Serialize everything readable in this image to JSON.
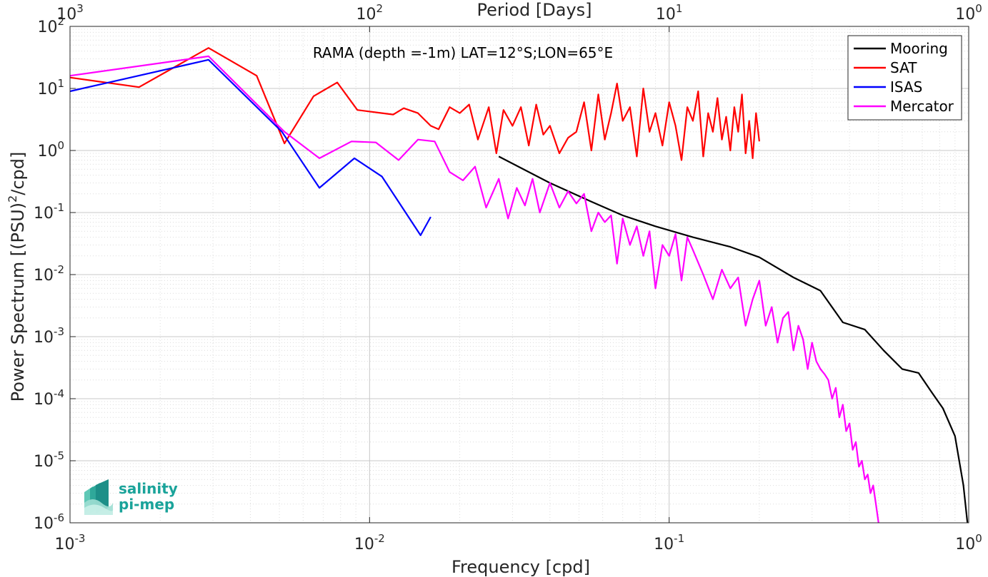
{
  "chart_data": {
    "type": "line",
    "title": "RAMA (depth =-1m) LAT=12°S;LON=65°E",
    "xlabel": "Frequency [cpd]",
    "ylabel_parts": [
      "Power Spectrum [(PSU)",
      "2",
      "/cpd]"
    ],
    "top_xlabel": "Period [Days]",
    "x_scale": "log",
    "y_scale": "log",
    "xlim": [
      0.001,
      1
    ],
    "ylim": [
      1e-06,
      100
    ],
    "top_xlim_period_days": [
      1000,
      1
    ],
    "grid": true,
    "legend_position": "top-right",
    "x_tick_labels": [
      {
        "base": "10",
        "exp": "-3"
      },
      {
        "base": "10",
        "exp": "-2"
      },
      {
        "base": "10",
        "exp": "-1"
      },
      {
        "base": "10",
        "exp": "0"
      }
    ],
    "top_x_tick_labels": [
      {
        "base": "10",
        "exp": "3"
      },
      {
        "base": "10",
        "exp": "2"
      },
      {
        "base": "10",
        "exp": "1"
      },
      {
        "base": "10",
        "exp": "0"
      }
    ],
    "y_tick_labels": [
      {
        "base": "10",
        "exp": "2"
      },
      {
        "base": "10",
        "exp": "1"
      },
      {
        "base": "10",
        "exp": "0"
      },
      {
        "base": "10",
        "exp": "-1"
      },
      {
        "base": "10",
        "exp": "-2"
      },
      {
        "base": "10",
        "exp": "-3"
      },
      {
        "base": "10",
        "exp": "-4"
      },
      {
        "base": "10",
        "exp": "-5"
      },
      {
        "base": "10",
        "exp": "-6"
      }
    ],
    "series": [
      {
        "name": "Mooring",
        "color": "#000000",
        "x": [
          0.027,
          0.04,
          0.055,
          0.07,
          0.09,
          0.12,
          0.16,
          0.2,
          0.26,
          0.32,
          0.38,
          0.45,
          0.52,
          0.6,
          0.68,
          0.75,
          0.82,
          0.9,
          0.96,
          0.99
        ],
        "y": [
          0.8,
          0.3,
          0.15,
          0.09,
          0.06,
          0.04,
          0.028,
          0.019,
          0.009,
          0.0055,
          0.0017,
          0.0013,
          0.0006,
          0.0003,
          0.00026,
          0.00013,
          7e-05,
          2.5e-05,
          4e-06,
          1e-06
        ]
      },
      {
        "name": "SAT",
        "color": "#ff0000",
        "x": [
          0.001,
          0.0017,
          0.0029,
          0.0042,
          0.0052,
          0.0065,
          0.0078,
          0.0091,
          0.011,
          0.012,
          0.013,
          0.0145,
          0.016,
          0.017,
          0.0185,
          0.02,
          0.0215,
          0.023,
          0.025,
          0.0265,
          0.028,
          0.03,
          0.032,
          0.034,
          0.036,
          0.038,
          0.04,
          0.043,
          0.046,
          0.049,
          0.052,
          0.055,
          0.058,
          0.061,
          0.064,
          0.067,
          0.07,
          0.074,
          0.078,
          0.082,
          0.086,
          0.09,
          0.095,
          0.1,
          0.105,
          0.11,
          0.115,
          0.12,
          0.125,
          0.13,
          0.135,
          0.14,
          0.145,
          0.15,
          0.155,
          0.16,
          0.165,
          0.17,
          0.175,
          0.18,
          0.185,
          0.19,
          0.195,
          0.2
        ],
        "y": [
          15,
          10.5,
          45,
          16,
          1.3,
          7.5,
          12.5,
          4.5,
          4,
          3.8,
          4.8,
          4,
          2.5,
          2.2,
          5,
          4,
          5.5,
          1.5,
          5,
          0.9,
          4.5,
          2.5,
          5,
          1.2,
          5.5,
          1.8,
          2.5,
          0.9,
          1.6,
          2,
          6,
          1,
          8,
          1.5,
          4,
          12,
          3,
          5,
          0.8,
          10,
          2,
          4,
          1.2,
          6,
          2.5,
          0.7,
          5,
          3,
          9,
          0.8,
          4,
          2,
          7,
          1.5,
          3.5,
          1,
          5,
          2,
          8,
          0.9,
          3,
          0.75,
          4,
          1.4
        ]
      },
      {
        "name": "ISAS",
        "color": "#0000ff",
        "x": [
          0.001,
          0.0029,
          0.0051,
          0.0068,
          0.0089,
          0.011,
          0.0148,
          0.016
        ],
        "y": [
          9,
          29,
          2,
          0.25,
          0.75,
          0.38,
          0.043,
          0.085
        ]
      },
      {
        "name": "Mercator",
        "color": "#ff00ff",
        "x": [
          0.001,
          0.0029,
          0.0052,
          0.0068,
          0.0087,
          0.0105,
          0.0125,
          0.0145,
          0.0165,
          0.0185,
          0.0205,
          0.0225,
          0.0245,
          0.027,
          0.029,
          0.031,
          0.033,
          0.035,
          0.037,
          0.04,
          0.043,
          0.046,
          0.049,
          0.052,
          0.055,
          0.058,
          0.061,
          0.064,
          0.067,
          0.07,
          0.074,
          0.078,
          0.082,
          0.086,
          0.09,
          0.095,
          0.1,
          0.105,
          0.11,
          0.115,
          0.12,
          0.13,
          0.14,
          0.15,
          0.16,
          0.17,
          0.18,
          0.19,
          0.2,
          0.21,
          0.22,
          0.23,
          0.24,
          0.25,
          0.26,
          0.27,
          0.28,
          0.29,
          0.3,
          0.31,
          0.32,
          0.33,
          0.34,
          0.35,
          0.36,
          0.37,
          0.38,
          0.39,
          0.4,
          0.41,
          0.42,
          0.43,
          0.44,
          0.45,
          0.46,
          0.47,
          0.48,
          0.49,
          0.5
        ],
        "y": [
          16,
          33,
          2,
          0.75,
          1.4,
          1.35,
          0.7,
          1.5,
          1.4,
          0.45,
          0.33,
          0.55,
          0.12,
          0.35,
          0.08,
          0.25,
          0.13,
          0.35,
          0.1,
          0.3,
          0.12,
          0.22,
          0.14,
          0.2,
          0.05,
          0.1,
          0.07,
          0.09,
          0.015,
          0.08,
          0.03,
          0.06,
          0.02,
          0.05,
          0.006,
          0.03,
          0.02,
          0.045,
          0.008,
          0.04,
          0.025,
          0.01,
          0.004,
          0.012,
          0.006,
          0.009,
          0.0015,
          0.004,
          0.008,
          0.0015,
          0.003,
          0.0008,
          0.002,
          0.0025,
          0.0006,
          0.0015,
          0.0009,
          0.0003,
          0.0008,
          0.0004,
          0.0003,
          0.00025,
          0.0002,
          0.0001,
          0.00015,
          5e-05,
          8e-05,
          3e-05,
          4e-05,
          1.5e-05,
          2e-05,
          8e-06,
          1e-05,
          5e-06,
          6e-06,
          3e-06,
          4e-06,
          2e-06,
          1e-06
        ]
      }
    ]
  },
  "logo": {
    "line1": "salinity",
    "line2": "pi-mep"
  }
}
